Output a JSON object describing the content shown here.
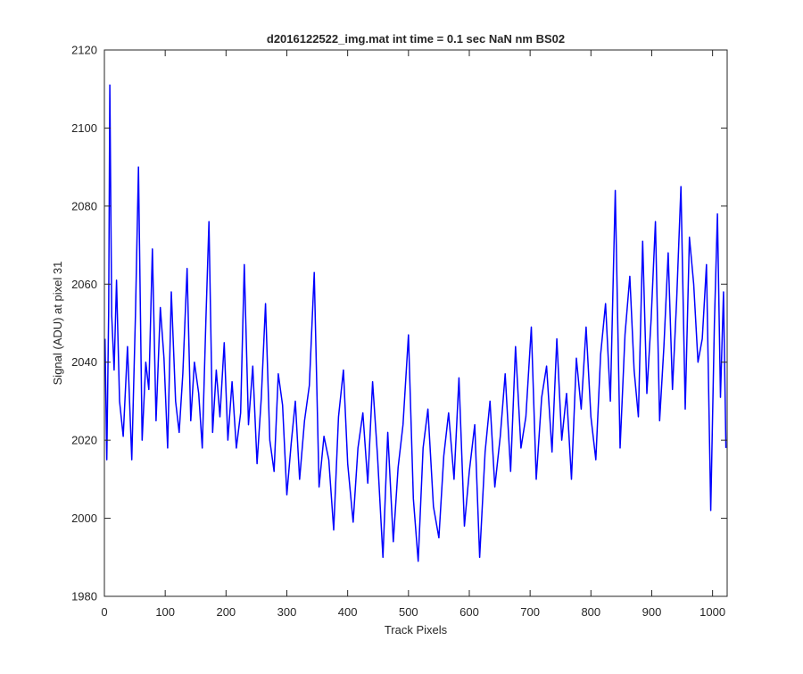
{
  "chart_data": {
    "type": "line",
    "title": "d2016122522_img.mat int time = 0.1 sec  NaN nm BS02",
    "xlabel": "Track Pixels",
    "ylabel": "Signal (ADU) at pixel 31",
    "xlim": [
      0,
      1024
    ],
    "ylim": [
      1980,
      2120
    ],
    "xticks": [
      0,
      100,
      200,
      300,
      400,
      500,
      600,
      700,
      800,
      900,
      1000
    ],
    "xtick_labels": [
      "0",
      "100",
      "200",
      "300",
      "400",
      "500",
      "600",
      "700",
      "800",
      "900",
      "1000"
    ],
    "yticks": [
      1980,
      2000,
      2020,
      2040,
      2060,
      2080,
      2100,
      2120
    ],
    "ytick_labels": [
      "1980",
      "2000",
      "2020",
      "2040",
      "2060",
      "2080",
      "2100",
      "2120"
    ],
    "grid": false,
    "legend": "none",
    "series": [
      {
        "color": "#0000ff",
        "x": [
          1,
          4,
          7,
          9,
          12,
          16,
          20,
          25,
          31,
          38,
          45,
          51,
          56,
          62,
          68,
          73,
          79,
          85,
          92,
          98,
          104,
          110,
          117,
          123,
          129,
          136,
          142,
          148,
          155,
          161,
          167,
          172,
          178,
          184,
          190,
          197,
          203,
          210,
          217,
          224,
          230,
          237,
          244,
          251,
          258,
          265,
          272,
          279,
          286,
          293,
          300,
          307,
          314,
          321,
          329,
          337,
          345,
          353,
          361,
          369,
          377,
          385,
          393,
          400,
          409,
          417,
          425,
          433,
          441,
          449,
          458,
          466,
          475,
          483,
          491,
          500,
          508,
          516,
          524,
          532,
          541,
          550,
          558,
          566,
          575,
          583,
          592,
          600,
          609,
          617,
          626,
          634,
          642,
          651,
          659,
          668,
          676,
          685,
          693,
          702,
          710,
          719,
          727,
          736,
          744,
          752,
          760,
          768,
          776,
          784,
          792,
          800,
          808,
          816,
          824,
          832,
          840,
          848,
          856,
          864,
          871,
          878,
          885,
          892,
          899,
          906,
          913,
          920,
          927,
          934,
          941,
          948,
          955,
          962,
          969,
          976,
          983,
          990,
          997,
          1003,
          1008,
          1013,
          1018,
          1022
        ],
        "y": [
          2046,
          2015,
          2053,
          2111,
          2052,
          2038,
          2061,
          2030,
          2021,
          2044,
          2015,
          2052,
          2090,
          2020,
          2040,
          2033,
          2069,
          2025,
          2054,
          2041,
          2018,
          2058,
          2030,
          2022,
          2037,
          2064,
          2025,
          2040,
          2032,
          2018,
          2051,
          2076,
          2022,
          2038,
          2026,
          2045,
          2020,
          2035,
          2018,
          2027,
          2065,
          2024,
          2039,
          2014,
          2031,
          2055,
          2020,
          2012,
          2037,
          2029,
          2006,
          2019,
          2030,
          2010,
          2025,
          2034,
          2063,
          2008,
          2021,
          2015,
          1997,
          2026,
          2038,
          2014,
          1999,
          2018,
          2027,
          2009,
          2035,
          2016,
          1990,
          2022,
          1994,
          2013,
          2024,
          2047,
          2005,
          1989,
          2018,
          2028,
          2003,
          1995,
          2016,
          2027,
          2010,
          2036,
          1998,
          2012,
          2024,
          1990,
          2017,
          2030,
          2008,
          2021,
          2037,
          2012,
          2044,
          2018,
          2026,
          2049,
          2010,
          2031,
          2039,
          2017,
          2046,
          2020,
          2032,
          2010,
          2041,
          2028,
          2049,
          2026,
          2015,
          2042,
          2055,
          2030,
          2084,
          2018,
          2047,
          2062,
          2038,
          2026,
          2071,
          2032,
          2051,
          2076,
          2025,
          2044,
          2068,
          2033,
          2056,
          2085,
          2028,
          2072,
          2060,
          2040,
          2046,
          2065,
          2002,
          2050,
          2078,
          2031,
          2058,
          2018
        ]
      }
    ]
  }
}
